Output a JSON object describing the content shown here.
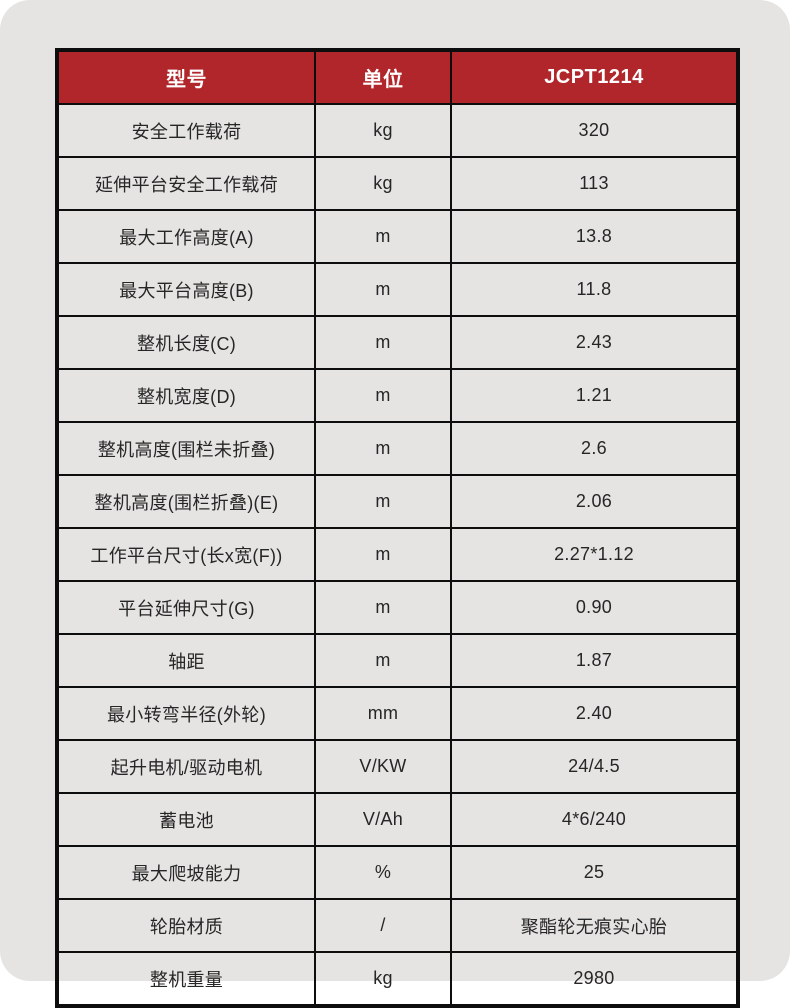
{
  "colors": {
    "header_bg": "#b1262b",
    "header_text": "#ffffff",
    "border": "#0d0d0d",
    "card_bg": "#e5e4e3",
    "cell_text": "#262626"
  },
  "table": {
    "columns": [
      {
        "key": "label",
        "header": "型号"
      },
      {
        "key": "unit",
        "header": "单位"
      },
      {
        "key": "value",
        "header": "JCPT1214"
      }
    ],
    "rows": [
      {
        "label": "安全工作载荷",
        "unit": "kg",
        "value": "320"
      },
      {
        "label": "延伸平台安全工作载荷",
        "unit": "kg",
        "value": "113"
      },
      {
        "label": "最大工作高度(A)",
        "unit": "m",
        "value": "13.8"
      },
      {
        "label": "最大平台高度(B)",
        "unit": "m",
        "value": "11.8"
      },
      {
        "label": "整机长度(C)",
        "unit": "m",
        "value": "2.43"
      },
      {
        "label": "整机宽度(D)",
        "unit": "m",
        "value": "1.21"
      },
      {
        "label": "整机高度(围栏未折叠)",
        "unit": "m",
        "value": "2.6"
      },
      {
        "label": "整机高度(围栏折叠)(E)",
        "unit": "m",
        "value": "2.06"
      },
      {
        "label": "工作平台尺寸(长x宽(F))",
        "unit": "m",
        "value": "2.27*1.12"
      },
      {
        "label": "平台延伸尺寸(G)",
        "unit": "m",
        "value": "0.90"
      },
      {
        "label": "轴距",
        "unit": "m",
        "value": "1.87"
      },
      {
        "label": "最小转弯半径(外轮)",
        "unit": "mm",
        "value": "2.40"
      },
      {
        "label": "起升电机/驱动电机",
        "unit": "V/KW",
        "value": "24/4.5"
      },
      {
        "label": "蓄电池",
        "unit": "V/Ah",
        "value": "4*6/240"
      },
      {
        "label": "最大爬坡能力",
        "unit": "%",
        "value": "25"
      },
      {
        "label": "轮胎材质",
        "unit": "/",
        "value": "聚酯轮无痕实心胎"
      },
      {
        "label": "整机重量",
        "unit": "kg",
        "value": "2980"
      }
    ]
  }
}
